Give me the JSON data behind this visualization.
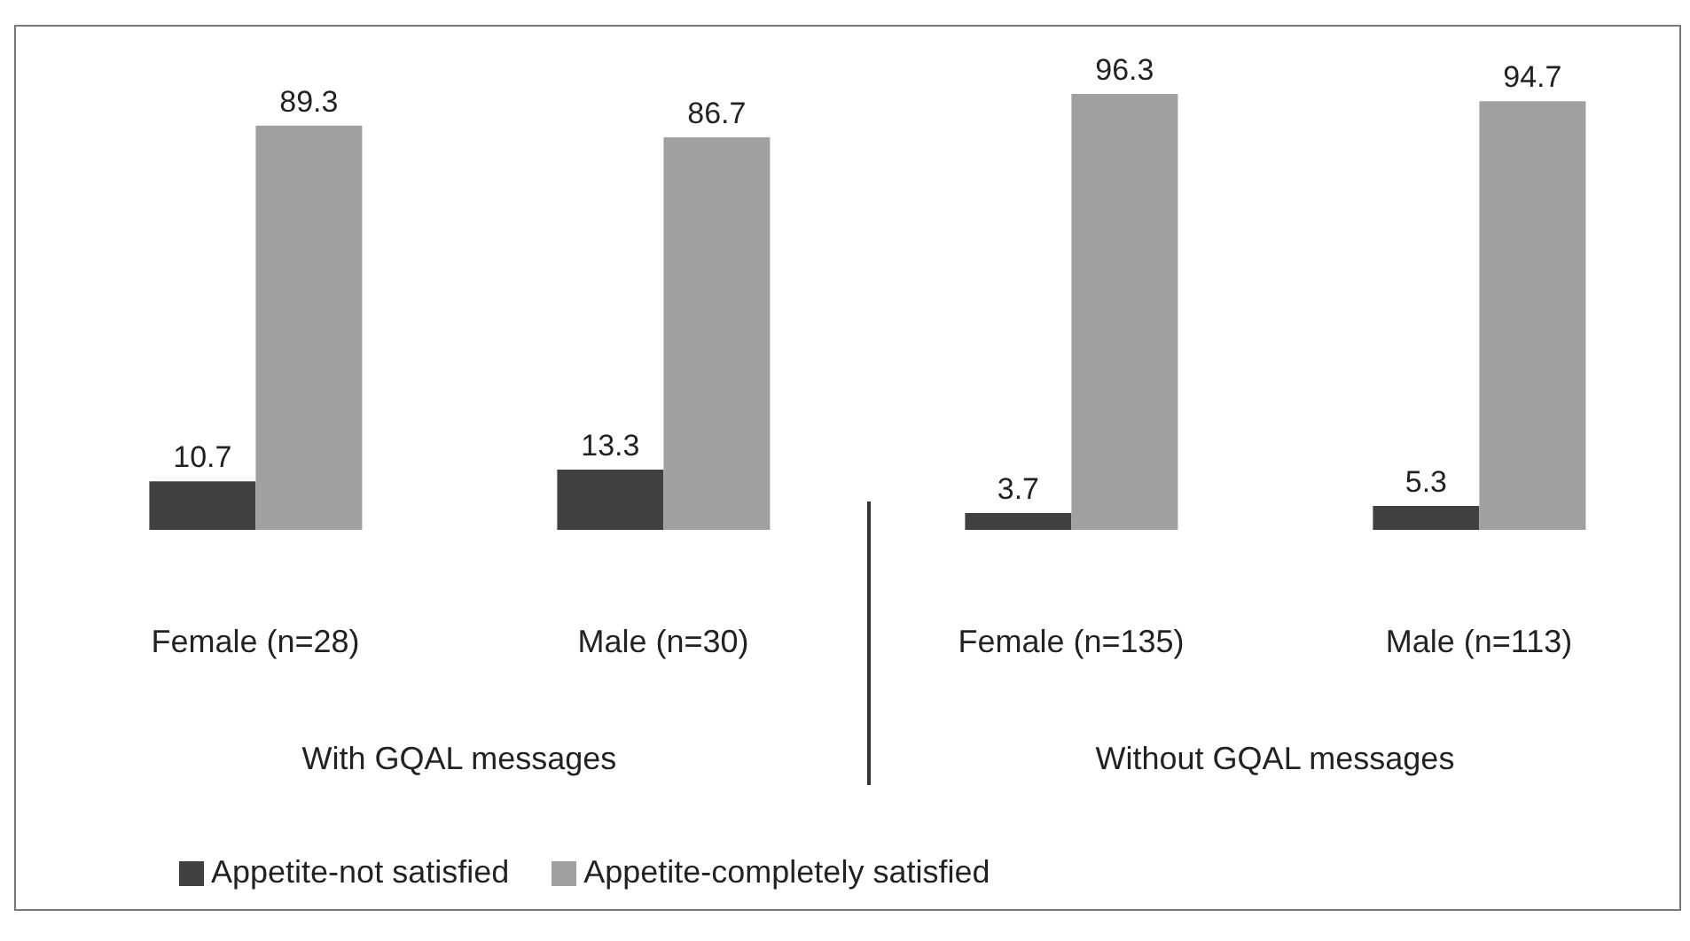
{
  "chart_data": {
    "type": "bar",
    "categories": [
      "Female (n=28)",
      "Male (n=30)",
      "Female (n=135)",
      "Male (n=113)"
    ],
    "series": [
      {
        "name": "Appetite-not satisfied",
        "color": "#404040",
        "values": [
          10.7,
          13.3,
          3.7,
          5.3
        ]
      },
      {
        "name": "Appetite-completely satisfied",
        "color": "#a0a0a0",
        "values": [
          89.3,
          86.7,
          96.3,
          94.7
        ]
      }
    ],
    "annotations": [
      "With GQAL messages",
      "Without GQAL messages"
    ],
    "data_labels": true,
    "legend": "bottom left",
    "grid": false
  }
}
